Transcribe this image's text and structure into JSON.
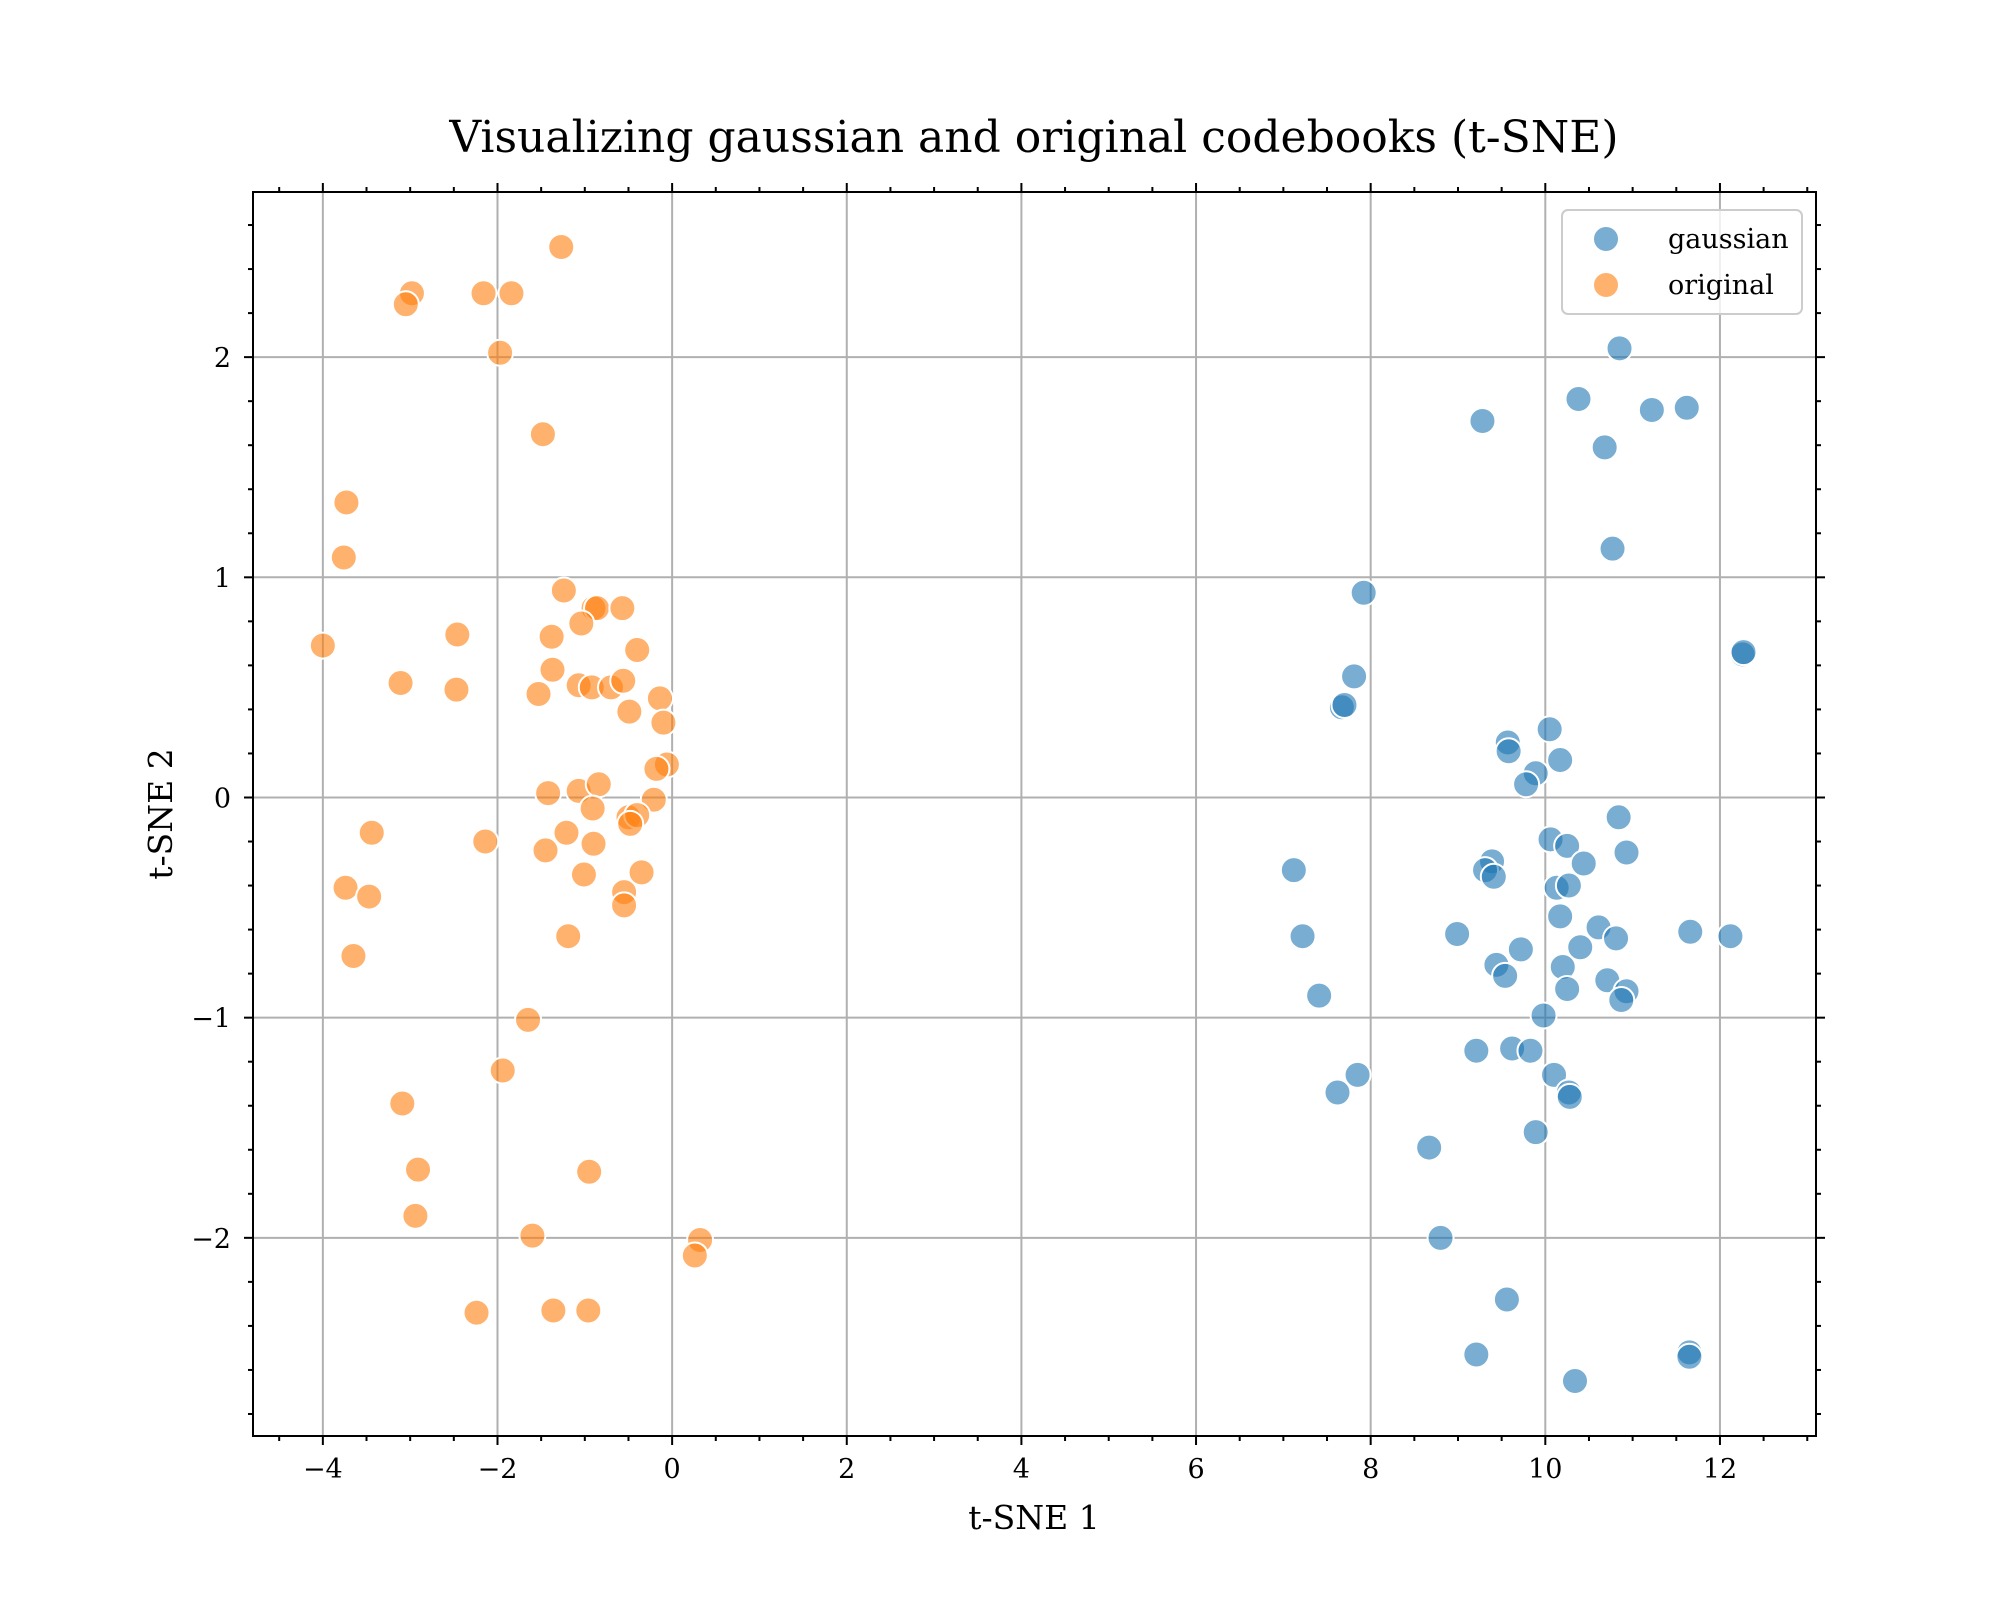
{
  "chart_data": {
    "type": "scatter",
    "title": "Visualizing gaussian and original codebooks (t-SNE)",
    "xlabel": "t-SNE 1",
    "ylabel": "t-SNE 2",
    "xlim": [
      -4.8,
      13.1
    ],
    "ylim": [
      -2.9,
      2.75
    ],
    "xticks": [
      -4,
      -2,
      0,
      2,
      4,
      6,
      8,
      10,
      12
    ],
    "xtick_labels": [
      "−4",
      "−2",
      "0",
      "2",
      "4",
      "6",
      "8",
      "10",
      "12"
    ],
    "yticks": [
      -2,
      -1,
      0,
      1,
      2
    ],
    "ytick_labels": [
      "−2",
      "−1",
      "0",
      "1",
      "2"
    ],
    "grid": true,
    "legend_position": "top-right",
    "series": [
      {
        "name": "gaussian",
        "color": "#1f77b4",
        "alpha": 0.6,
        "points": [
          [
            10.85,
            2.04
          ],
          [
            10.38,
            1.81
          ],
          [
            11.22,
            1.76
          ],
          [
            11.62,
            1.77
          ],
          [
            9.28,
            1.71
          ],
          [
            10.68,
            1.59
          ],
          [
            10.77,
            1.13
          ],
          [
            7.92,
            0.93
          ],
          [
            12.26,
            0.65
          ],
          [
            12.27,
            0.66
          ],
          [
            7.81,
            0.55
          ],
          [
            7.67,
            0.41
          ],
          [
            7.7,
            0.42
          ],
          [
            10.05,
            0.31
          ],
          [
            9.57,
            0.25
          ],
          [
            9.58,
            0.21
          ],
          [
            10.17,
            0.17
          ],
          [
            9.89,
            0.11
          ],
          [
            9.78,
            0.06
          ],
          [
            10.84,
            -0.09
          ],
          [
            10.93,
            -0.25
          ],
          [
            10.06,
            -0.19
          ],
          [
            10.25,
            -0.22
          ],
          [
            10.44,
            -0.3
          ],
          [
            9.39,
            -0.29
          ],
          [
            9.31,
            -0.33
          ],
          [
            9.41,
            -0.36
          ],
          [
            10.13,
            -0.41
          ],
          [
            10.27,
            -0.4
          ],
          [
            7.12,
            -0.33
          ],
          [
            10.17,
            -0.54
          ],
          [
            10.61,
            -0.59
          ],
          [
            10.81,
            -0.64
          ],
          [
            8.99,
            -0.62
          ],
          [
            7.22,
            -0.63
          ],
          [
            11.66,
            -0.61
          ],
          [
            12.12,
            -0.63
          ],
          [
            10.4,
            -0.68
          ],
          [
            9.72,
            -0.69
          ],
          [
            9.44,
            -0.76
          ],
          [
            9.54,
            -0.81
          ],
          [
            10.2,
            -0.77
          ],
          [
            10.71,
            -0.83
          ],
          [
            10.93,
            -0.88
          ],
          [
            10.87,
            -0.92
          ],
          [
            10.25,
            -0.87
          ],
          [
            7.41,
            -0.9
          ],
          [
            9.98,
            -0.99
          ],
          [
            9.21,
            -1.15
          ],
          [
            9.62,
            -1.14
          ],
          [
            9.83,
            -1.15
          ],
          [
            10.1,
            -1.26
          ],
          [
            7.85,
            -1.26
          ],
          [
            10.27,
            -1.34
          ],
          [
            10.28,
            -1.36
          ],
          [
            7.62,
            -1.34
          ],
          [
            9.89,
            -1.52
          ],
          [
            8.67,
            -1.59
          ],
          [
            8.8,
            -2.0
          ],
          [
            9.56,
            -2.28
          ],
          [
            9.21,
            -2.53
          ],
          [
            11.65,
            -2.52
          ],
          [
            11.65,
            -2.54
          ],
          [
            10.34,
            -2.65
          ]
        ]
      },
      {
        "name": "original",
        "color": "#ff7f0e",
        "alpha": 0.6,
        "points": [
          [
            -1.27,
            2.5
          ],
          [
            -2.98,
            2.29
          ],
          [
            -3.05,
            2.24
          ],
          [
            -2.16,
            2.29
          ],
          [
            -1.84,
            2.29
          ],
          [
            -1.97,
            2.02
          ],
          [
            -1.48,
            1.65
          ],
          [
            -3.73,
            1.34
          ],
          [
            -3.76,
            1.09
          ],
          [
            -4.0,
            0.69
          ],
          [
            -1.24,
            0.94
          ],
          [
            -0.9,
            0.86
          ],
          [
            -0.86,
            0.86
          ],
          [
            -0.57,
            0.86
          ],
          [
            -1.04,
            0.79
          ],
          [
            -2.46,
            0.74
          ],
          [
            -1.38,
            0.73
          ],
          [
            -0.4,
            0.67
          ],
          [
            -1.37,
            0.58
          ],
          [
            -3.11,
            0.52
          ],
          [
            -2.47,
            0.49
          ],
          [
            -1.07,
            0.51
          ],
          [
            -0.92,
            0.5
          ],
          [
            -0.7,
            0.5
          ],
          [
            -0.56,
            0.53
          ],
          [
            -1.53,
            0.47
          ],
          [
            -0.14,
            0.45
          ],
          [
            -0.49,
            0.39
          ],
          [
            -0.1,
            0.34
          ],
          [
            -0.06,
            0.15
          ],
          [
            -0.18,
            0.13
          ],
          [
            -1.42,
            0.02
          ],
          [
            -1.07,
            0.03
          ],
          [
            -0.84,
            0.06
          ],
          [
            -0.21,
            -0.01
          ],
          [
            -0.91,
            -0.05
          ],
          [
            -0.5,
            -0.09
          ],
          [
            -0.4,
            -0.08
          ],
          [
            -0.48,
            -0.12
          ],
          [
            -3.44,
            -0.16
          ],
          [
            -1.21,
            -0.16
          ],
          [
            -2.14,
            -0.2
          ],
          [
            -0.9,
            -0.21
          ],
          [
            -1.45,
            -0.24
          ],
          [
            -1.01,
            -0.35
          ],
          [
            -0.35,
            -0.34
          ],
          [
            -3.74,
            -0.41
          ],
          [
            -0.55,
            -0.43
          ],
          [
            -3.47,
            -0.45
          ],
          [
            -0.55,
            -0.49
          ],
          [
            -1.19,
            -0.63
          ],
          [
            -3.65,
            -0.72
          ],
          [
            -1.65,
            -1.01
          ],
          [
            -1.94,
            -1.24
          ],
          [
            -3.09,
            -1.39
          ],
          [
            -2.91,
            -1.69
          ],
          [
            -0.95,
            -1.7
          ],
          [
            -2.94,
            -1.9
          ],
          [
            -1.6,
            -1.99
          ],
          [
            0.32,
            -2.01
          ],
          [
            0.26,
            -2.08
          ],
          [
            -2.24,
            -2.34
          ],
          [
            -1.36,
            -2.33
          ],
          [
            -0.96,
            -2.33
          ]
        ]
      }
    ]
  }
}
